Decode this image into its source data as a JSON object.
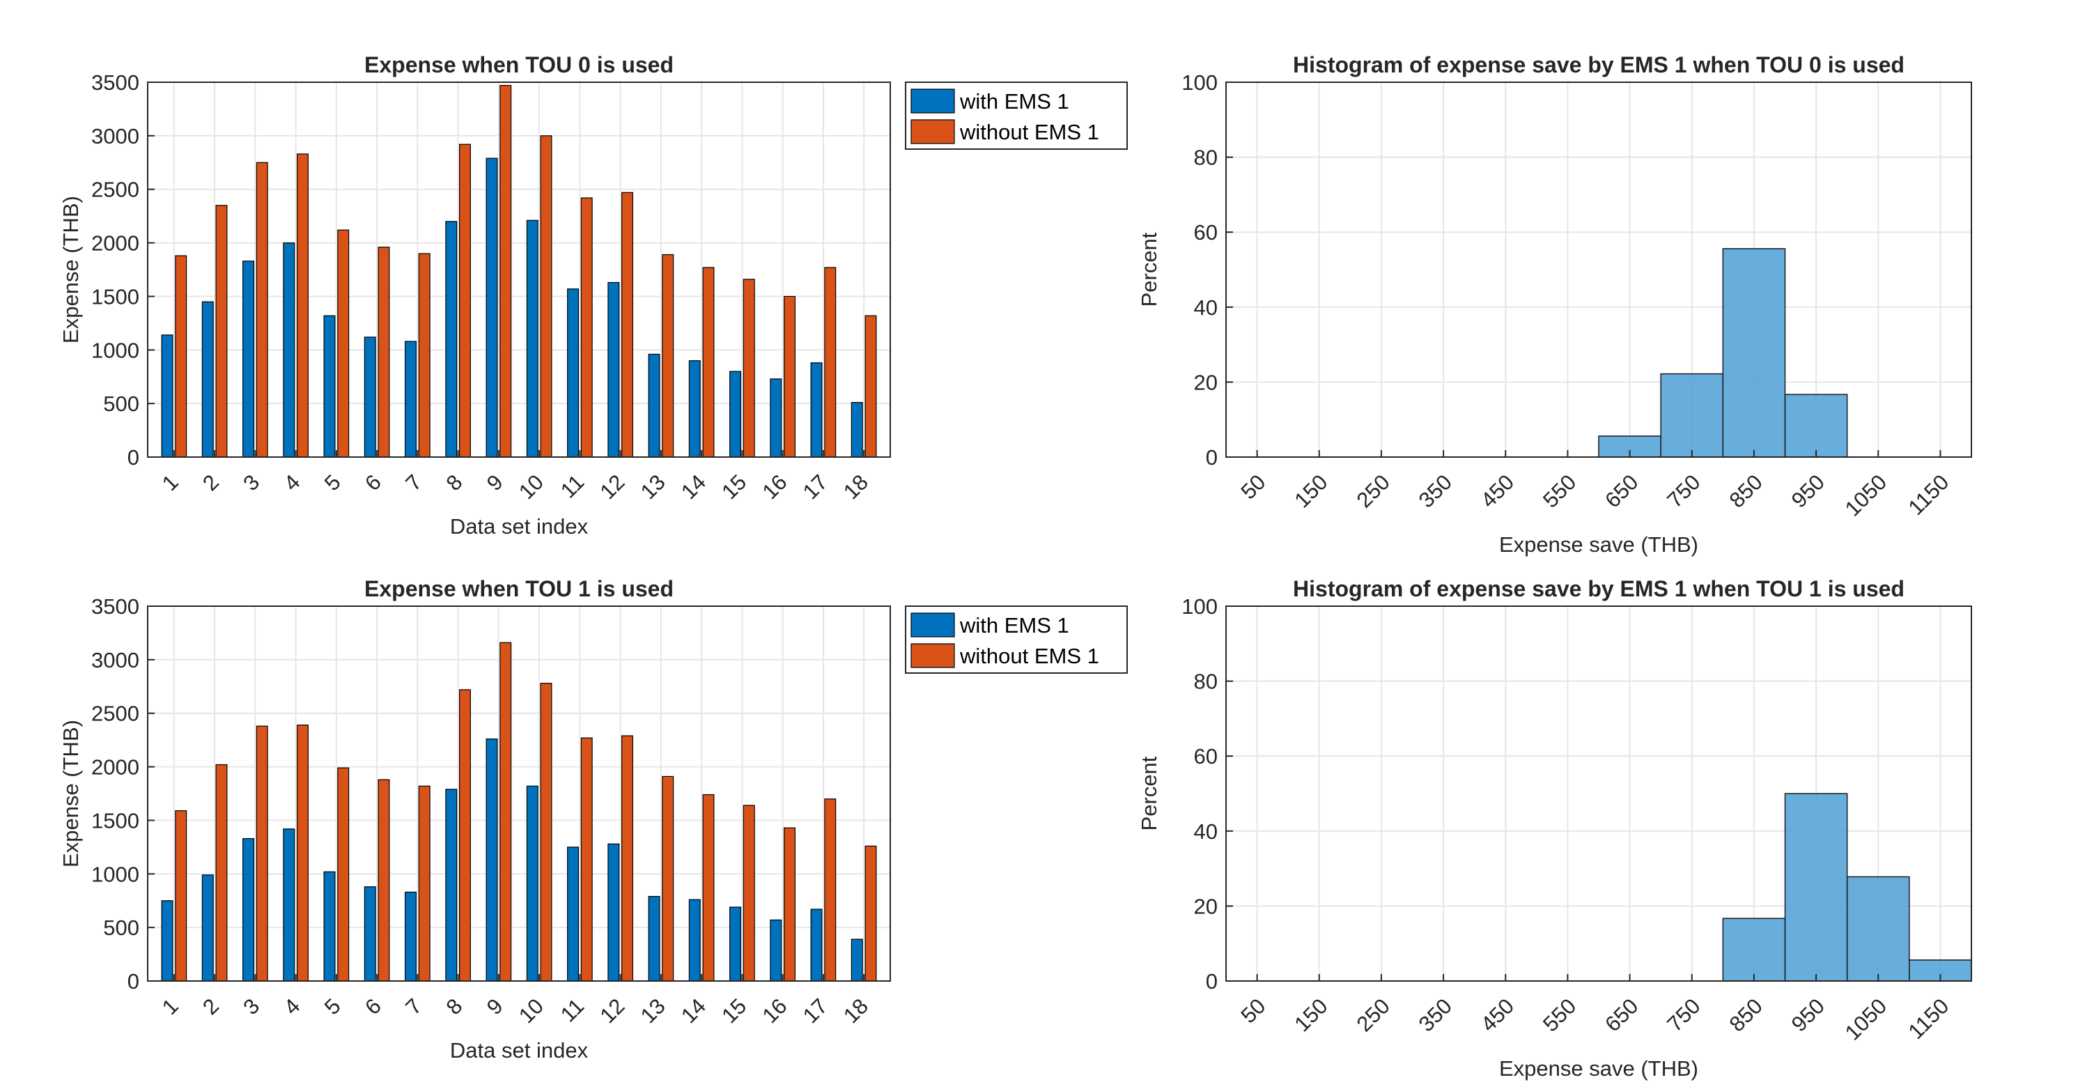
{
  "chart_data": [
    {
      "type": "bar",
      "title": "Expense when TOU 0 is used",
      "xlabel": "Data set index",
      "ylabel": "Expense (THB)",
      "ylim": [
        0,
        3500
      ],
      "yticks": [
        0,
        500,
        1000,
        1500,
        2000,
        2500,
        3000,
        3500
      ],
      "grid": true,
      "legend_position": "outside-top-right",
      "categories": [
        "1",
        "2",
        "3",
        "4",
        "5",
        "6",
        "7",
        "8",
        "9",
        "10",
        "11",
        "12",
        "13",
        "14",
        "15",
        "16",
        "17",
        "18"
      ],
      "series": [
        {
          "name": "with EMS 1",
          "color": "#0072BD",
          "values": [
            1140,
            1450,
            1830,
            2000,
            1320,
            1120,
            1080,
            2200,
            2790,
            2210,
            1570,
            1630,
            960,
            900,
            800,
            730,
            880,
            510
          ]
        },
        {
          "name": "without EMS 1",
          "color": "#D95319",
          "values": [
            1880,
            2350,
            2750,
            2830,
            2120,
            1960,
            1900,
            2920,
            3470,
            3000,
            2420,
            2470,
            1890,
            1770,
            1660,
            1500,
            1770,
            1320
          ]
        }
      ]
    },
    {
      "type": "histogram",
      "title": "Histogram of expense save by EMS 1 when TOU 0 is used",
      "xlabel": "Expense save (THB)",
      "ylabel": "Percent",
      "ylim": [
        0,
        100
      ],
      "yticks": [
        0,
        20,
        40,
        60,
        80,
        100
      ],
      "xlim": [
        0,
        1200
      ],
      "xticks": [
        50,
        150,
        250,
        350,
        450,
        550,
        650,
        750,
        850,
        950,
        1050,
        1150
      ],
      "grid": true,
      "bar_color": "#4DA0D6",
      "bins": [
        {
          "start": 600,
          "end": 700,
          "percent": 5.6
        },
        {
          "start": 700,
          "end": 800,
          "percent": 22.2
        },
        {
          "start": 800,
          "end": 900,
          "percent": 55.6
        },
        {
          "start": 900,
          "end": 1000,
          "percent": 16.7
        }
      ]
    },
    {
      "type": "bar",
      "title": "Expense when TOU 1 is used",
      "xlabel": "Data set index",
      "ylabel": "Expense (THB)",
      "ylim": [
        0,
        3500
      ],
      "yticks": [
        0,
        500,
        1000,
        1500,
        2000,
        2500,
        3000,
        3500
      ],
      "grid": true,
      "legend_position": "outside-top-right",
      "categories": [
        "1",
        "2",
        "3",
        "4",
        "5",
        "6",
        "7",
        "8",
        "9",
        "10",
        "11",
        "12",
        "13",
        "14",
        "15",
        "16",
        "17",
        "18"
      ],
      "series": [
        {
          "name": "with EMS 1",
          "color": "#0072BD",
          "values": [
            750,
            990,
            1330,
            1420,
            1020,
            880,
            830,
            1790,
            2260,
            1820,
            1250,
            1280,
            790,
            760,
            690,
            570,
            670,
            390
          ]
        },
        {
          "name": "without EMS 1",
          "color": "#D95319",
          "values": [
            1590,
            2020,
            2380,
            2390,
            1990,
            1880,
            1820,
            2720,
            3160,
            2780,
            2270,
            2290,
            1910,
            1740,
            1640,
            1430,
            1700,
            1260
          ]
        }
      ]
    },
    {
      "type": "histogram",
      "title": "Histogram of expense save by EMS 1 when TOU 1 is used",
      "xlabel": "Expense save (THB)",
      "ylabel": "Percent",
      "ylim": [
        0,
        100
      ],
      "yticks": [
        0,
        20,
        40,
        60,
        80,
        100
      ],
      "xlim": [
        0,
        1200
      ],
      "xticks": [
        50,
        150,
        250,
        350,
        450,
        550,
        650,
        750,
        850,
        950,
        1050,
        1150
      ],
      "grid": true,
      "bar_color": "#4DA0D6",
      "bins": [
        {
          "start": 800,
          "end": 900,
          "percent": 16.7
        },
        {
          "start": 900,
          "end": 1000,
          "percent": 50.0
        },
        {
          "start": 1000,
          "end": 1100,
          "percent": 27.8
        },
        {
          "start": 1100,
          "end": 1200,
          "percent": 5.6
        }
      ]
    }
  ]
}
